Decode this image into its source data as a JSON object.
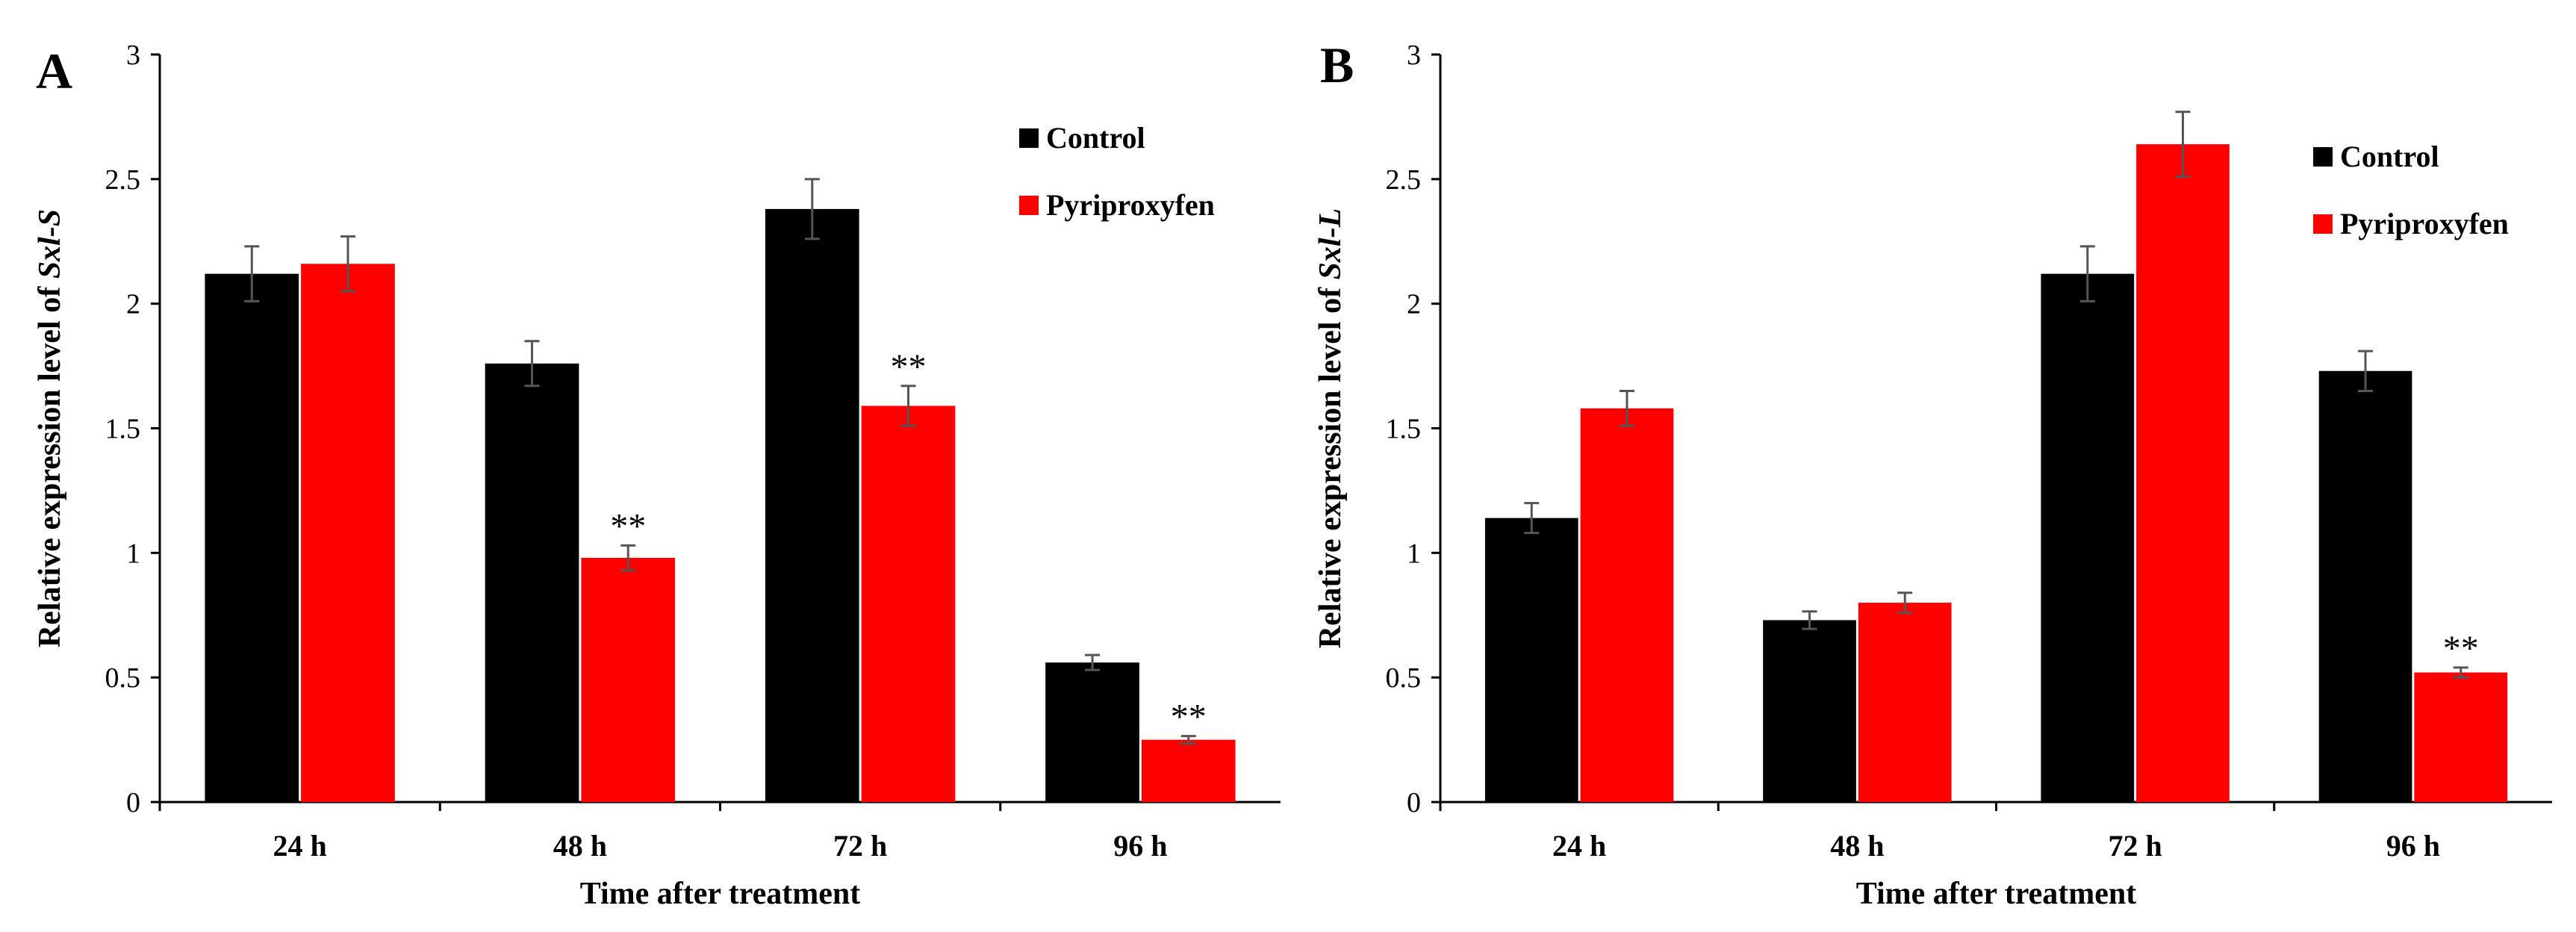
{
  "chart_data": [
    {
      "type": "bar",
      "panel_label": "A",
      "ylabel_prefix": "Relative expression level of ",
      "ylabel_gene": "Sxl-S",
      "xlabel": "Time after treatment",
      "categories": [
        "24 h",
        "48 h",
        "72 h",
        "96 h"
      ],
      "ylim": [
        0,
        3
      ],
      "yticks": [
        "0",
        "0.5",
        "1",
        "1.5",
        "2",
        "2.5",
        "3"
      ],
      "legend_position": "top-right",
      "series": [
        {
          "name": "Control",
          "color": "#000000",
          "values": [
            2.12,
            1.76,
            2.38,
            0.56
          ],
          "errors": [
            0.11,
            0.09,
            0.12,
            0.03
          ],
          "annotations": [
            "",
            "",
            "",
            ""
          ]
        },
        {
          "name": "Pyriproxyfen",
          "color": "#ff0000",
          "values": [
            2.16,
            0.98,
            1.59,
            0.25
          ],
          "errors": [
            0.11,
            0.05,
            0.08,
            0.015
          ],
          "annotations": [
            "",
            "**",
            "**",
            "**"
          ]
        }
      ]
    },
    {
      "type": "bar",
      "panel_label": "B",
      "ylabel_prefix": "Relative expression level of ",
      "ylabel_gene": "Sxl-L",
      "xlabel": "Time after treatment",
      "categories": [
        "24 h",
        "48 h",
        "72 h",
        "96 h"
      ],
      "ylim": [
        0,
        3
      ],
      "yticks": [
        "0",
        "0.5",
        "1",
        "1.5",
        "2",
        "2.5",
        "3"
      ],
      "legend_position": "top-right",
      "series": [
        {
          "name": "Control",
          "color": "#000000",
          "values": [
            1.14,
            0.73,
            2.12,
            1.73
          ],
          "errors": [
            0.06,
            0.035,
            0.11,
            0.08
          ],
          "annotations": [
            "",
            "",
            "",
            ""
          ]
        },
        {
          "name": "Pyriproxyfen",
          "color": "#ff0000",
          "values": [
            1.58,
            0.8,
            2.64,
            0.52
          ],
          "errors": [
            0.07,
            0.04,
            0.13,
            0.02
          ],
          "annotations": [
            "",
            "",
            "",
            "**"
          ]
        }
      ]
    }
  ]
}
